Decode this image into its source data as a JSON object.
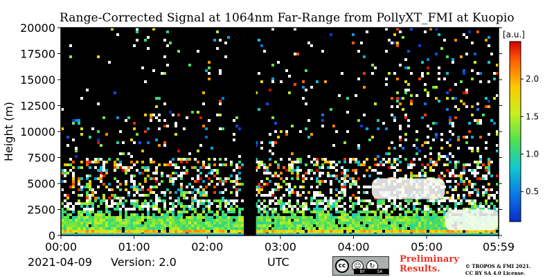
{
  "chart_data": {
    "type": "heatmap",
    "title": "Range-Corrected Signal at 1064nm Far-Range from PollyXT_FMI at Kuopio",
    "xlabel": "UTC",
    "ylabel": "Height (m)",
    "xlim": [
      "00:00",
      "05:59"
    ],
    "ylim": [
      0,
      20000
    ],
    "x_ticks": [
      "00:00",
      "01:00",
      "02:00",
      "03:00",
      "04:00",
      "05:00",
      "05:59"
    ],
    "y_ticks": [
      0,
      2500,
      5000,
      7500,
      10000,
      12500,
      15000,
      17500,
      20000
    ],
    "colorbar": {
      "label": "[a.u.]",
      "range": [
        0.1,
        2.5
      ],
      "ticks": [
        0.5,
        1.0,
        1.5,
        2.0
      ],
      "tick_labels": [
        "0.5",
        "1.0",
        "1.5",
        "2.0"
      ],
      "colormap": "jet"
    },
    "no_data_interval_utc": [
      "02:30",
      "02:40"
    ],
    "features": [
      {
        "type": "boundary layer aerosol",
        "x_range": [
          "00:00",
          "05:59"
        ],
        "height_range_m": [
          0,
          2000
        ],
        "level": "high"
      },
      {
        "type": "elevated aerosol layer",
        "x_range": [
          "00:00",
          "05:59"
        ],
        "height_range_m": [
          3500,
          7500
        ],
        "level": "medium"
      },
      {
        "type": "cloud (saturated)",
        "x_range": [
          "04:15",
          "05:15"
        ],
        "height_range_m": [
          3500,
          5500
        ]
      },
      {
        "type": "cloud (saturated)",
        "x_range": [
          "05:15",
          "05:59"
        ],
        "height_range_m": [
          500,
          2500
        ]
      }
    ]
  },
  "footer": {
    "date": "2021-04-09",
    "version": "Version: 2.0",
    "license_badge": {
      "icon": "cc-by-sa-icon",
      "by": "BY",
      "sa": "SA"
    },
    "preliminary": "Preliminary\nResults.",
    "copyright": "© TROPOS & FMI 2021.\nCC BY SA 4.0 License."
  },
  "colors": {
    "background": "#000000",
    "preliminary_text": "#e8332a"
  }
}
